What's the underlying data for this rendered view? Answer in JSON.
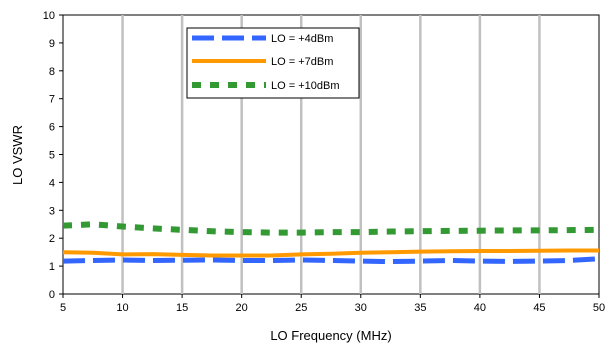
{
  "chart_data": {
    "type": "line",
    "xlabel": "LO Frequency (MHz)",
    "ylabel": "LO VSWR",
    "xlim": [
      5,
      50
    ],
    "ylim": [
      0,
      10
    ],
    "x_ticks": [
      5,
      10,
      15,
      20,
      25,
      30,
      35,
      40,
      45,
      50
    ],
    "y_ticks": [
      0,
      1,
      2,
      3,
      4,
      5,
      6,
      7,
      8,
      9,
      10
    ],
    "grid": "vertical",
    "legend_position": "top-center",
    "series": [
      {
        "name": "LO = +4dBm",
        "color": "#3366ff",
        "style": "dashed",
        "x": [
          5,
          7.5,
          10,
          12.5,
          15,
          17.5,
          20,
          22.5,
          25,
          27.5,
          30,
          32.5,
          35,
          37.5,
          40,
          42.5,
          45,
          47.5,
          50
        ],
        "values": [
          1.18,
          1.2,
          1.22,
          1.2,
          1.21,
          1.22,
          1.2,
          1.2,
          1.22,
          1.2,
          1.18,
          1.16,
          1.18,
          1.2,
          1.18,
          1.17,
          1.18,
          1.2,
          1.26
        ]
      },
      {
        "name": "LO = +7dBm",
        "color": "#ff9900",
        "style": "solid",
        "x": [
          5,
          7.5,
          10,
          12.5,
          15,
          17.5,
          20,
          22.5,
          25,
          27.5,
          30,
          32.5,
          35,
          37.5,
          40,
          42.5,
          45,
          47.5,
          50
        ],
        "values": [
          1.5,
          1.48,
          1.42,
          1.43,
          1.4,
          1.38,
          1.38,
          1.38,
          1.42,
          1.44,
          1.48,
          1.5,
          1.52,
          1.53,
          1.54,
          1.54,
          1.55,
          1.56,
          1.56
        ]
      },
      {
        "name": "LO = +10dBm",
        "color": "#339933",
        "style": "dotted",
        "x": [
          5,
          7.5,
          10,
          12.5,
          15,
          17.5,
          20,
          22.5,
          25,
          27.5,
          30,
          32.5,
          35,
          37.5,
          40,
          42.5,
          45,
          47.5,
          50
        ],
        "values": [
          2.45,
          2.5,
          2.42,
          2.35,
          2.3,
          2.25,
          2.22,
          2.2,
          2.2,
          2.22,
          2.22,
          2.24,
          2.25,
          2.26,
          2.27,
          2.28,
          2.28,
          2.29,
          2.3
        ]
      }
    ]
  }
}
